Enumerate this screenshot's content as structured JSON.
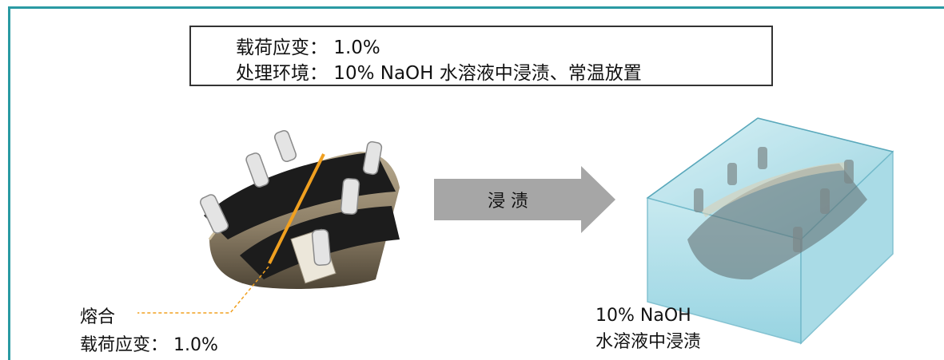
{
  "conditions": {
    "load_strain": "载荷应变： 1.0%",
    "environment": "处理环境： 10%  NaOH 水溶液中浸渍、常温放置"
  },
  "arrow": {
    "label": "浸 渍"
  },
  "left_specimen": {
    "fusion_label": "熔合",
    "strain_label": "载荷应变： 1.0%"
  },
  "right_specimen": {
    "solution_label": "10% NaOH",
    "immersion_label": "水溶液中浸渍"
  },
  "colors": {
    "frame": "#2a9aa3",
    "arrow": "#a6a6a6",
    "fusion_line": "#f0a020",
    "specimen_body": "#8c7e66",
    "band": "#1c1c1c",
    "water": "#a8dde8"
  }
}
